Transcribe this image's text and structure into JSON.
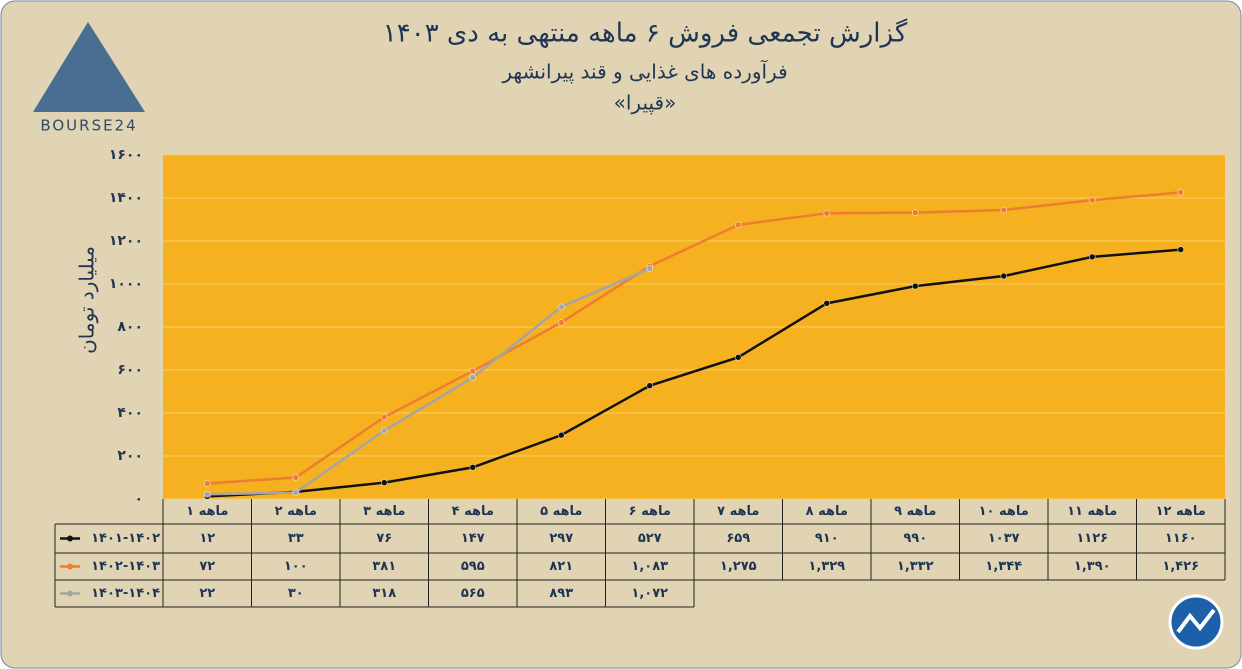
{
  "logo": "BOURSE24",
  "chart_data": {
    "type": "line",
    "title": "گزارش تجمعی فروش ۶ ماهه منتهی به دی ۱۴۰۳",
    "subtitle": [
      "فرآورده های غذایی و قند پیرانشهر",
      "«قپیرا»"
    ],
    "y_label": "میلیارد تومان",
    "categories": [
      "۱ ماهه",
      "۲ ماهه",
      "۳ ماهه",
      "۴ ماهه",
      "۵ ماهه",
      "۶ ماهه",
      "۷ ماهه",
      "۸ ماهه",
      "۹ ماهه",
      "۱۰ ماهه",
      "۱۱ ماهه",
      "۱۲ ماهه"
    ],
    "series": [
      {
        "name": "۱۴۰۱-۱۴۰۲",
        "color": "#111111",
        "values": [
          12,
          33,
          76,
          147,
          297,
          527,
          659,
          910,
          990,
          1037,
          1126,
          1160
        ],
        "value_labels": [
          "۱۲",
          "۳۳",
          "۷۶",
          "۱۴۷",
          "۲۹۷",
          "۵۲۷",
          "۶۵۹",
          "۹۱۰",
          "۹۹۰",
          "۱۰۳۷",
          "۱۱۲۶",
          "۱۱۶۰"
        ]
      },
      {
        "name": "۱۴۰۲-۱۴۰۳",
        "color": "#ed7d31",
        "values": [
          72,
          100,
          381,
          595,
          821,
          1083,
          1275,
          1329,
          1332,
          1344,
          1390,
          1426
        ],
        "value_labels": [
          "۷۲",
          "۱۰۰",
          "۳۸۱",
          "۵۹۵",
          "۸۲۱",
          "۱,۰۸۳",
          "۱,۲۷۵",
          "۱,۳۲۹",
          "۱,۳۳۲",
          "۱,۳۴۴",
          "۱,۳۹۰",
          "۱,۴۲۶"
        ]
      },
      {
        "name": "۱۴۰۳-۱۴۰۴",
        "color": "#a5a5a5",
        "values": [
          22,
          30,
          318,
          565,
          893,
          1072,
          null,
          null,
          null,
          null,
          null,
          null
        ],
        "value_labels": [
          "۲۲",
          "۳۰",
          "۳۱۸",
          "۵۶۵",
          "۸۹۳",
          "۱,۰۷۲",
          null,
          null,
          null,
          null,
          null,
          null
        ]
      }
    ],
    "ylim": [
      0,
      1600
    ],
    "yticks": [
      {
        "value": 0,
        "label": "۰"
      },
      {
        "value": 200,
        "label": "۲۰۰"
      },
      {
        "value": 400,
        "label": "۴۰۰"
      },
      {
        "value": 600,
        "label": "۶۰۰"
      },
      {
        "value": 800,
        "label": "۸۰۰"
      },
      {
        "value": 1000,
        "label": "۱۰۰۰"
      },
      {
        "value": 1200,
        "label": "۱۲۰۰"
      },
      {
        "value": 1400,
        "label": "۱۴۰۰"
      },
      {
        "value": 1600,
        "label": "۱۶۰۰"
      }
    ],
    "grid": true,
    "plot_color": "#f5b120"
  }
}
